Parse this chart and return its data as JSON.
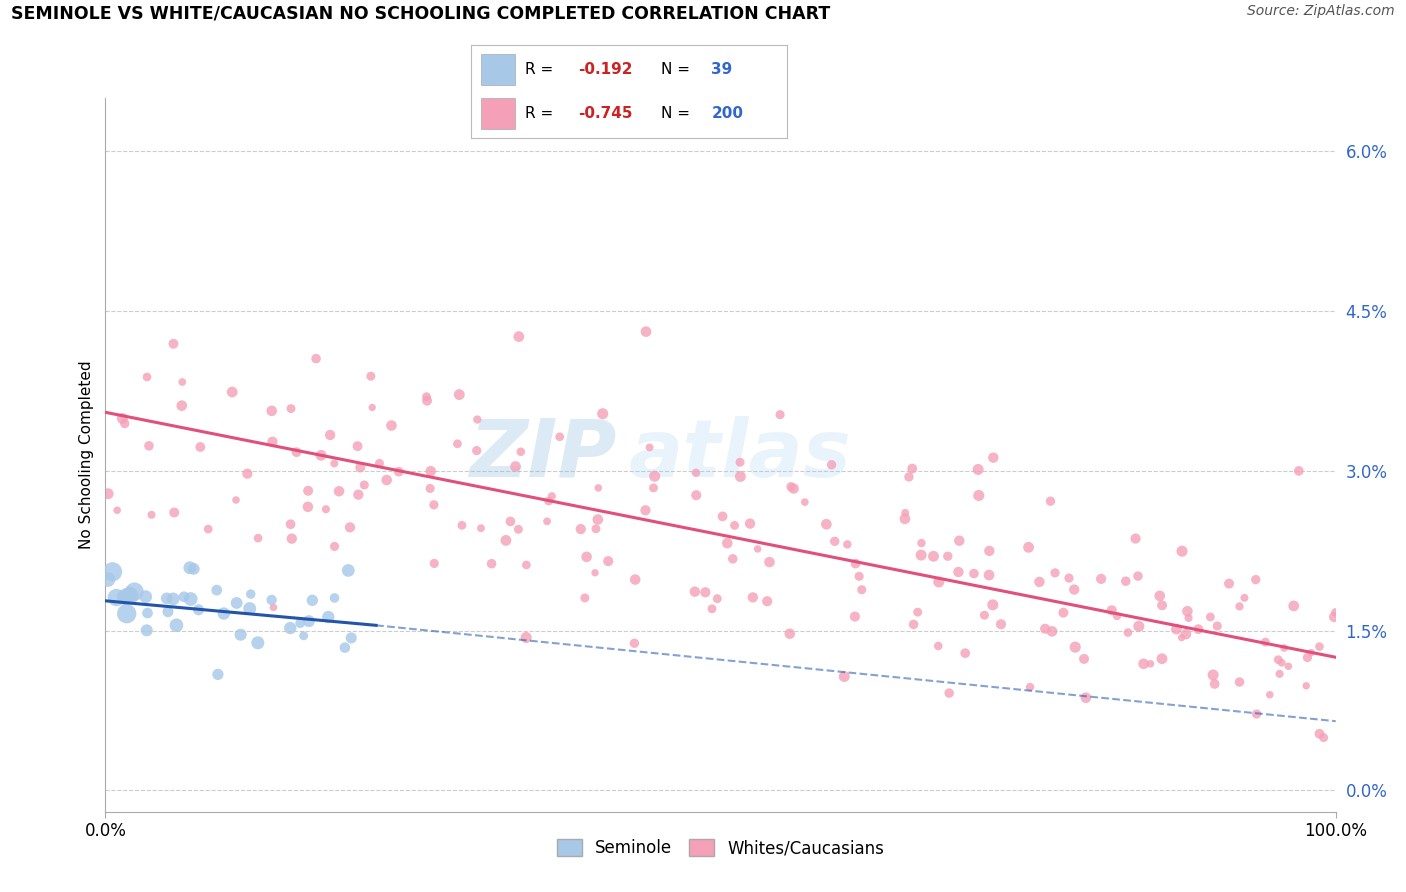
{
  "title": "SEMINOLE VS WHITE/CAUCASIAN NO SCHOOLING COMPLETED CORRELATION CHART",
  "source": "Source: ZipAtlas.com",
  "ylabel": "No Schooling Completed",
  "ytick_vals": [
    0.0,
    1.5,
    3.0,
    4.5,
    6.0
  ],
  "xlim": [
    0.0,
    100.0
  ],
  "ylim": [
    -0.2,
    6.5
  ],
  "legend_R1": "-0.192",
  "legend_N1": "39",
  "legend_R2": "-0.745",
  "legend_N2": "200",
  "seminole_color": "#a8c8e8",
  "caucasian_color": "#f4a0b8",
  "seminole_line_color": "#2255aa",
  "caucasian_line_color": "#e0507a",
  "background_color": "#ffffff",
  "grid_color": "#cccccc",
  "tick_label_color": "#3366cc",
  "neg_color": "#cc2222",
  "sem_line_start_x": 0.0,
  "sem_line_end_x": 22.0,
  "sem_line_start_y": 1.78,
  "sem_line_end_y": 1.55,
  "sem_dash_start_x": 22.0,
  "sem_dash_end_x": 100.0,
  "sem_dash_start_y": 1.55,
  "sem_dash_end_y": 0.65,
  "cau_line_start_x": 0.0,
  "cau_line_end_x": 100.0,
  "cau_line_start_y": 3.55,
  "cau_line_end_y": 1.25
}
